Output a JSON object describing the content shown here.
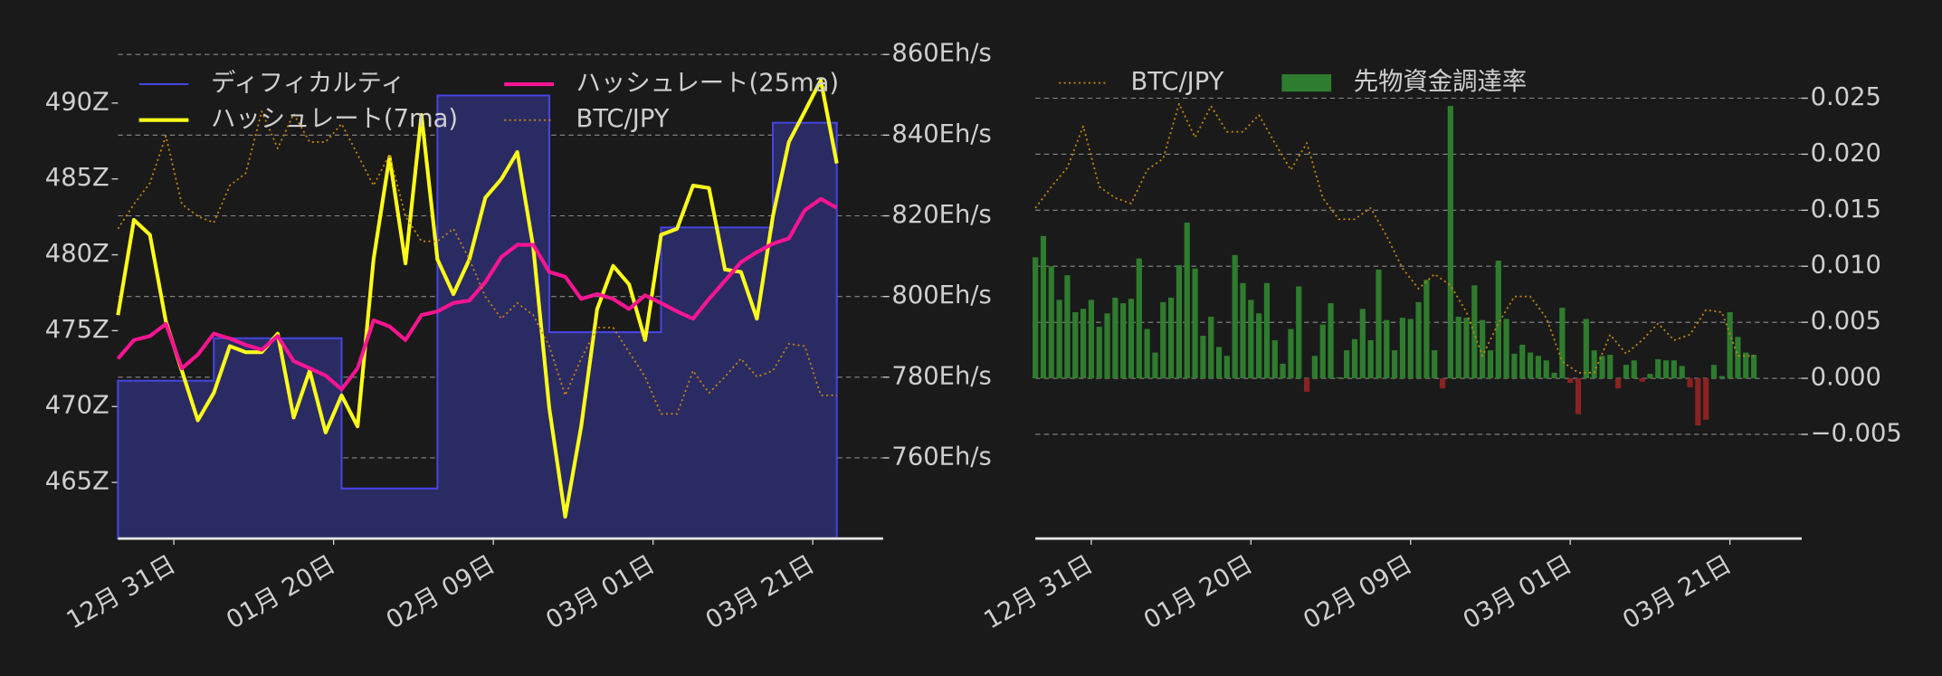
{
  "chart_data": [
    {
      "type": "line",
      "x": [
        -7,
        -5,
        -3,
        -1,
        1,
        3,
        5,
        7,
        9,
        11,
        13,
        15,
        17,
        19,
        21,
        23,
        25,
        27,
        29,
        31,
        33,
        35,
        37,
        39,
        41,
        43,
        45,
        47,
        49,
        51,
        53,
        55,
        57,
        59,
        61,
        63,
        65,
        67,
        69,
        71,
        73,
        75,
        77,
        79,
        81,
        83
      ],
      "xlim": [
        -7,
        88.8
      ],
      "xticks": [
        {
          "value": 0,
          "label": "12月 31日"
        },
        {
          "value": 20,
          "label": "01月 20日"
        },
        {
          "value": 40,
          "label": "02月 09日"
        },
        {
          "value": 60,
          "label": "03月 01日"
        },
        {
          "value": 80,
          "label": "03月 21日"
        }
      ],
      "ylim": [
        461.3,
        493.2
      ],
      "yticks": [
        {
          "value": 465,
          "label": "465Z"
        },
        {
          "value": 470,
          "label": "470Z"
        },
        {
          "value": 475,
          "label": "475Z"
        },
        {
          "value": 480,
          "label": "480Z"
        },
        {
          "value": 485,
          "label": "485Z"
        },
        {
          "value": 490,
          "label": "490Z"
        }
      ],
      "y2lim": [
        740,
        860
      ],
      "y2ticks": [
        {
          "value": 760,
          "label": "760Eh/s"
        },
        {
          "value": 780,
          "label": "780Eh/s"
        },
        {
          "value": 800,
          "label": "800Eh/s"
        },
        {
          "value": 820,
          "label": "820Eh/s"
        },
        {
          "value": 840,
          "label": "840Eh/s"
        },
        {
          "value": 860,
          "label": "860Eh/s"
        }
      ],
      "grid": "y2",
      "legend": "upper left",
      "legend_columns": 2,
      "yaxis_position": "left",
      "series": [
        {
          "name": "ディフィカルティ",
          "color": "#4545e0",
          "fill": "#2b2b63",
          "style": "step",
          "values": [
            471.7,
            471.7,
            471.7,
            471.7,
            471.7,
            471.7,
            474.5,
            474.5,
            474.5,
            474.5,
            474.5,
            474.5,
            474.5,
            474.5,
            464.6,
            464.6,
            464.6,
            464.6,
            464.6,
            464.6,
            490.5,
            490.5,
            490.5,
            490.5,
            490.5,
            490.5,
            490.5,
            474.9,
            474.9,
            474.9,
            474.9,
            474.9,
            474.9,
            474.9,
            481.8,
            481.8,
            481.8,
            481.8,
            481.8,
            481.8,
            481.8,
            488.7,
            488.7,
            488.7,
            488.7,
            488.7
          ]
        },
        {
          "name": "ハッシュレート(7ma)",
          "color": "#ffff1a",
          "style": "solid",
          "axis": "y2",
          "values": [
            795.4,
            819.0,
            815.3,
            793.8,
            781.6,
            769.3,
            776.1,
            787.7,
            786.2,
            786.2,
            790.8,
            770.0,
            781.6,
            766.3,
            775.5,
            767.8,
            809.2,
            834.6,
            808.2,
            845.0,
            809.2,
            800.6,
            809.2,
            824.5,
            829.1,
            835.8,
            812.2,
            772.4,
            745.4,
            767.8,
            796.9,
            807.6,
            803.0,
            789.2,
            815.3,
            816.8,
            827.5,
            826.9,
            806.7,
            806.1,
            794.5,
            819.9,
            838.3,
            845.9,
            853.6,
            833.0
          ]
        },
        {
          "name": "ハッシュレート(25ma)",
          "color": "#ff1493",
          "style": "solid",
          "axis": "y2",
          "values": [
            784.6,
            789.2,
            790.2,
            793.2,
            782.2,
            785.6,
            790.8,
            789.6,
            788.0,
            786.8,
            790.2,
            784.0,
            782.2,
            780.4,
            777.0,
            782.2,
            794.1,
            792.6,
            789.2,
            795.4,
            796.3,
            798.4,
            799.0,
            803.6,
            809.8,
            812.8,
            812.8,
            806.1,
            804.9,
            799.4,
            800.6,
            799.4,
            796.9,
            800.3,
            798.4,
            796.3,
            794.5,
            799.4,
            803.9,
            808.5,
            811.0,
            813.1,
            814.4,
            821.4,
            824.2,
            822.0
          ]
        },
        {
          "name": "BTC/JPY",
          "color": "#c8860b",
          "style": "dotted",
          "axis": "y2",
          "values": [
            816.8,
            822.9,
            828.1,
            839.8,
            822.9,
            819.9,
            818.3,
            827.5,
            830.6,
            845.9,
            836.7,
            845.3,
            838.3,
            838.3,
            842.8,
            835.2,
            827.5,
            835.2,
            819.9,
            813.7,
            813.7,
            816.8,
            809.2,
            800.0,
            794.5,
            798.4,
            795.4,
            787.7,
            775.5,
            784.6,
            792.3,
            792.3,
            786.2,
            780.1,
            770.9,
            770.9,
            781.6,
            776.1,
            780.1,
            784.6,
            780.1,
            781.6,
            788.3,
            787.7,
            775.5,
            775.5
          ]
        }
      ]
    },
    {
      "type": "bar",
      "xlim": [
        -7,
        89
      ],
      "xticks": [
        {
          "value": 0,
          "label": "12月 31日"
        },
        {
          "value": 20,
          "label": "01月 20日"
        },
        {
          "value": 40,
          "label": "02月 09日"
        },
        {
          "value": 60,
          "label": "03月 01日"
        },
        {
          "value": 80,
          "label": "03月 21日"
        }
      ],
      "ylim": [
        -0.0143,
        0.0289
      ],
      "yticks": [
        {
          "value": -0.005,
          "label": "−0.005"
        },
        {
          "value": 0,
          "label": "0.000"
        },
        {
          "value": 0.005,
          "label": "0.005"
        },
        {
          "value": 0.01,
          "label": "0.010"
        },
        {
          "value": 0.015,
          "label": "0.015"
        },
        {
          "value": 0.02,
          "label": "0.020"
        },
        {
          "value": 0.025,
          "label": "0.025"
        }
      ],
      "grid": "y",
      "legend": "upper left",
      "legend_columns": 2,
      "yaxis_position": "right",
      "series": [
        {
          "name": "BTC/JPY",
          "color": "#c8860b",
          "style": "dotted",
          "x": [
            -7,
            -5,
            -3,
            -1,
            1,
            3,
            5,
            7,
            9,
            11,
            13,
            15,
            17,
            19,
            21,
            23,
            25,
            27,
            29,
            31,
            33,
            35,
            37,
            39,
            41,
            43,
            45,
            47,
            49,
            51,
            53,
            55,
            57,
            59,
            61,
            63,
            65,
            67,
            69,
            71,
            73,
            75,
            77,
            79,
            81,
            83
          ],
          "values": [
            0.0152,
            0.0171,
            0.0188,
            0.0225,
            0.0171,
            0.0161,
            0.0156,
            0.0186,
            0.0196,
            0.0245,
            0.0215,
            0.0243,
            0.022,
            0.022,
            0.0235,
            0.021,
            0.0186,
            0.021,
            0.0161,
            0.0142,
            0.0142,
            0.0152,
            0.0127,
            0.0098,
            0.008,
            0.0093,
            0.0083,
            0.0059,
            0.002,
            0.0049,
            0.0073,
            0.0073,
            0.0054,
            0.0015,
            0.0005,
            0.0005,
            0.0039,
            0.0022,
            0.0034,
            0.0049,
            0.0034,
            0.0039,
            0.0061,
            0.0059,
            0.002,
            0.002
          ]
        },
        {
          "name": "先物資金調達率",
          "color": "#2e7d2e",
          "negative_color": "#8b2222",
          "style": "bar",
          "x": [
            -7,
            -6,
            -5,
            -4,
            -3,
            -2,
            -1,
            0,
            1,
            2,
            3,
            4,
            5,
            6,
            7,
            8,
            9,
            10,
            11,
            12,
            13,
            14,
            15,
            16,
            17,
            18,
            19,
            20,
            21,
            22,
            23,
            24,
            25,
            26,
            27,
            28,
            29,
            30,
            31,
            32,
            33,
            34,
            35,
            36,
            37,
            38,
            39,
            40,
            41,
            42,
            43,
            44,
            45,
            46,
            47,
            48,
            49,
            50,
            51,
            52,
            53,
            54,
            55,
            56,
            57,
            58,
            59,
            60,
            61,
            62,
            63,
            64,
            65,
            66,
            67,
            68,
            69,
            70,
            71,
            72,
            73,
            74,
            75,
            76,
            77,
            78,
            79,
            80,
            81,
            82,
            83
          ],
          "values": [
            0.0108,
            0.0127,
            0.01,
            0.007,
            0.0092,
            0.0059,
            0.0062,
            0.007,
            0.0046,
            0.0058,
            0.0072,
            0.0067,
            0.0071,
            0.0107,
            0.0044,
            0.0023,
            0.0068,
            0.0072,
            0.0101,
            0.0139,
            0.0098,
            0.0038,
            0.0055,
            0.0028,
            0.002,
            0.011,
            0.0085,
            0.007,
            0.0058,
            0.0085,
            0.0034,
            0.0013,
            0.0044,
            0.0082,
            -0.0012,
            0.002,
            0.0048,
            0.0067,
            0.0001,
            0.0025,
            0.0035,
            0.0062,
            0.0034,
            0.0097,
            0.0052,
            0.0025,
            0.0054,
            0.0053,
            0.0068,
            0.0088,
            0.0025,
            -0.0009,
            0.0243,
            0.0055,
            0.0054,
            0.0083,
            0.0052,
            0.0025,
            0.0105,
            0.0053,
            0.0022,
            0.003,
            0.0023,
            0.002,
            0.0016,
            0.0005,
            0.0063,
            -0.0004,
            -0.0032,
            0.0053,
            0.0025,
            0.002,
            0.0021,
            -0.0009,
            0.0012,
            0.0016,
            -0.0003,
            0.0004,
            0.0017,
            0.0016,
            0.0016,
            0.0011,
            -0.0008,
            -0.0042,
            -0.0037,
            0.0012,
            0.0002,
            0.0059,
            0.0037,
            0.0023,
            0.0021
          ]
        }
      ]
    }
  ]
}
